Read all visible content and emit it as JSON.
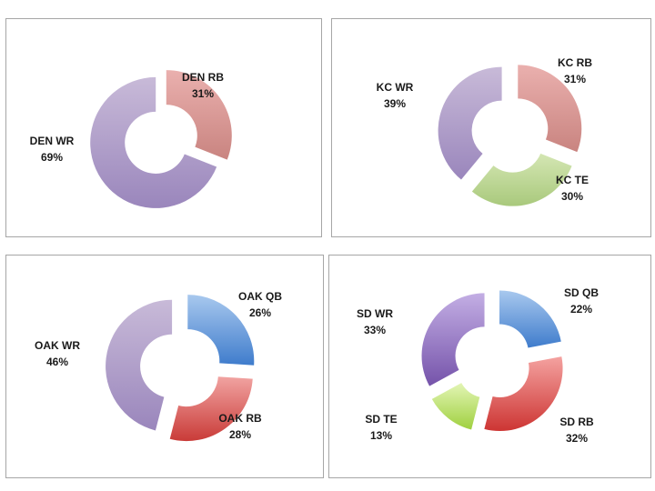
{
  "colors": {
    "WR": [
      "#c8bad8",
      "#9a86bc"
    ],
    "RB": [
      "#eab0ae",
      "#c98480"
    ],
    "TE": [
      "#d4e6b3",
      "#a9c97c"
    ],
    "QB": [
      "#a8c8ee",
      "#3f7ccc"
    ],
    "WR_SD": [
      "#c3aee4",
      "#7553aa"
    ],
    "RB_SD": [
      "#f4a2a0",
      "#cd3533"
    ],
    "TE_SD": [
      "#e3f5b5",
      "#9fd03f"
    ],
    "RB_OAK": [
      "#f1a3a1",
      "#c93b38"
    ]
  },
  "chart_data": [
    {
      "type": "pie",
      "variant": "exploded-doughnut",
      "title": "",
      "slices": [
        {
          "label": "DEN RB",
          "pct": "31%",
          "value": 31,
          "colorKey": "RB"
        },
        {
          "label": "DEN WR",
          "pct": "69%",
          "value": 69,
          "colorKey": "WR"
        }
      ]
    },
    {
      "type": "pie",
      "variant": "exploded-doughnut",
      "title": "",
      "slices": [
        {
          "label": "KC RB",
          "pct": "31%",
          "value": 31,
          "colorKey": "RB"
        },
        {
          "label": "KC TE",
          "pct": "30%",
          "value": 30,
          "colorKey": "TE"
        },
        {
          "label": "KC WR",
          "pct": "39%",
          "value": 39,
          "colorKey": "WR"
        }
      ]
    },
    {
      "type": "pie",
      "variant": "exploded-doughnut",
      "title": "",
      "slices": [
        {
          "label": "OAK QB",
          "pct": "26%",
          "value": 26,
          "colorKey": "QB"
        },
        {
          "label": "OAK RB",
          "pct": "28%",
          "value": 28,
          "colorKey": "RB_OAK"
        },
        {
          "label": "OAK WR",
          "pct": "46%",
          "value": 46,
          "colorKey": "WR"
        }
      ]
    },
    {
      "type": "pie",
      "variant": "exploded-doughnut",
      "title": "",
      "slices": [
        {
          "label": "SD QB",
          "pct": "22%",
          "value": 22,
          "colorKey": "QB"
        },
        {
          "label": "SD RB",
          "pct": "32%",
          "value": 32,
          "colorKey": "RB_SD"
        },
        {
          "label": "SD TE",
          "pct": "13%",
          "value": 13,
          "colorKey": "TE_SD"
        },
        {
          "label": "SD WR",
          "pct": "33%",
          "value": 33,
          "colorKey": "WR_SD"
        }
      ]
    }
  ]
}
